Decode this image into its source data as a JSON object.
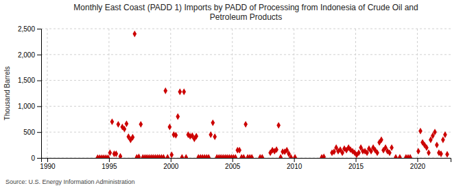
{
  "chart_data": {
    "type": "scatter",
    "title": "Monthly East Coast (PADD 1) Imports by PADD of Processing from Indonesia of Crude Oil and\nPetroleum Products",
    "ylabel": "Thousand Barrels",
    "source": "Source: U.S. Energy Information Administration",
    "color": "#CC0000",
    "marker": "diamond",
    "grid": true,
    "xlim": [
      1989.5,
      2022.7
    ],
    "xticks": [
      1990,
      1995,
      2000,
      2005,
      2010,
      2015,
      2020
    ],
    "ylim": [
      0,
      2500
    ],
    "yticks": [
      0,
      500,
      {
        "value": 1000,
        "label": "1,000"
      },
      {
        "value": 1500,
        "label": "1,500"
      },
      {
        "value": 2000,
        "label": "2,000"
      },
      {
        "value": 2500,
        "label": "2,500"
      }
    ],
    "x": [
      1994.08,
      1994.25,
      1994.42,
      1994.58,
      1994.75,
      1994.92,
      1995.08,
      1995.25,
      1995.42,
      1995.58,
      1995.75,
      1995.92,
      1996.08,
      1996.25,
      1996.42,
      1996.58,
      1996.75,
      1996.92,
      1997.08,
      1997.25,
      1997.42,
      1997.58,
      1997.75,
      1997.92,
      1998.08,
      1998.25,
      1998.42,
      1998.58,
      1998.75,
      1998.92,
      1999.08,
      1999.25,
      1999.42,
      1999.58,
      1999.75,
      1999.92,
      2000.08,
      2000.25,
      2000.42,
      2000.58,
      2000.75,
      2000.92,
      2001.08,
      2001.25,
      2001.42,
      2001.58,
      2001.75,
      2001.92,
      2002.08,
      2002.25,
      2002.42,
      2002.58,
      2002.75,
      2002.92,
      2003.08,
      2003.25,
      2003.42,
      2003.58,
      2003.75,
      2003.92,
      2004.08,
      2004.25,
      2004.42,
      2004.58,
      2004.75,
      2004.92,
      2005.08,
      2005.25,
      2005.42,
      2005.58,
      2005.75,
      2005.92,
      2006.08,
      2006.25,
      2006.42,
      2006.58,
      2007.25,
      2007.42,
      2008.08,
      2008.25,
      2008.42,
      2008.58,
      2008.75,
      2008.92,
      2009.08,
      2009.25,
      2009.42,
      2009.58,
      2009.75,
      2010.08,
      2012.25,
      2012.42,
      2013.08,
      2013.25,
      2013.42,
      2013.58,
      2013.75,
      2013.92,
      2014.08,
      2014.25,
      2014.42,
      2014.58,
      2014.75,
      2014.92,
      2015.08,
      2015.25,
      2015.42,
      2015.58,
      2015.75,
      2015.92,
      2016.08,
      2016.25,
      2016.42,
      2016.58,
      2016.75,
      2016.92,
      2017.08,
      2017.25,
      2017.42,
      2017.58,
      2017.75,
      2017.92,
      2018.25,
      2018.58,
      2019.08,
      2019.25,
      2019.42,
      2020.08,
      2020.25,
      2020.42,
      2020.58,
      2020.75,
      2020.92,
      2021.08,
      2021.25,
      2021.42,
      2021.58,
      2021.75,
      2021.92,
      2022.08,
      2022.25,
      2022.42
    ],
    "values": [
      5,
      5,
      5,
      5,
      5,
      5,
      100,
      700,
      80,
      80,
      650,
      30,
      600,
      560,
      660,
      410,
      350,
      400,
      2400,
      10,
      20,
      650,
      10,
      10,
      10,
      10,
      10,
      10,
      10,
      10,
      10,
      10,
      10,
      1300,
      10,
      600,
      60,
      450,
      440,
      800,
      1280,
      10,
      1280,
      10,
      450,
      420,
      430,
      370,
      420,
      10,
      10,
      10,
      10,
      10,
      10,
      450,
      680,
      410,
      10,
      10,
      10,
      10,
      10,
      10,
      10,
      10,
      10,
      10,
      150,
      150,
      10,
      10,
      650,
      10,
      10,
      10,
      10,
      10,
      100,
      150,
      130,
      160,
      630,
      10,
      120,
      120,
      150,
      80,
      10,
      10,
      10,
      20,
      100,
      120,
      200,
      130,
      160,
      100,
      180,
      150,
      200,
      160,
      130,
      100,
      60,
      100,
      200,
      130,
      130,
      100,
      180,
      130,
      200,
      150,
      100,
      300,
      350,
      150,
      200,
      130,
      100,
      200,
      10,
      10,
      10,
      10,
      10,
      130,
      520,
      300,
      250,
      200,
      100,
      350,
      430,
      500,
      250,
      100,
      80,
      350,
      450,
      70
    ]
  }
}
